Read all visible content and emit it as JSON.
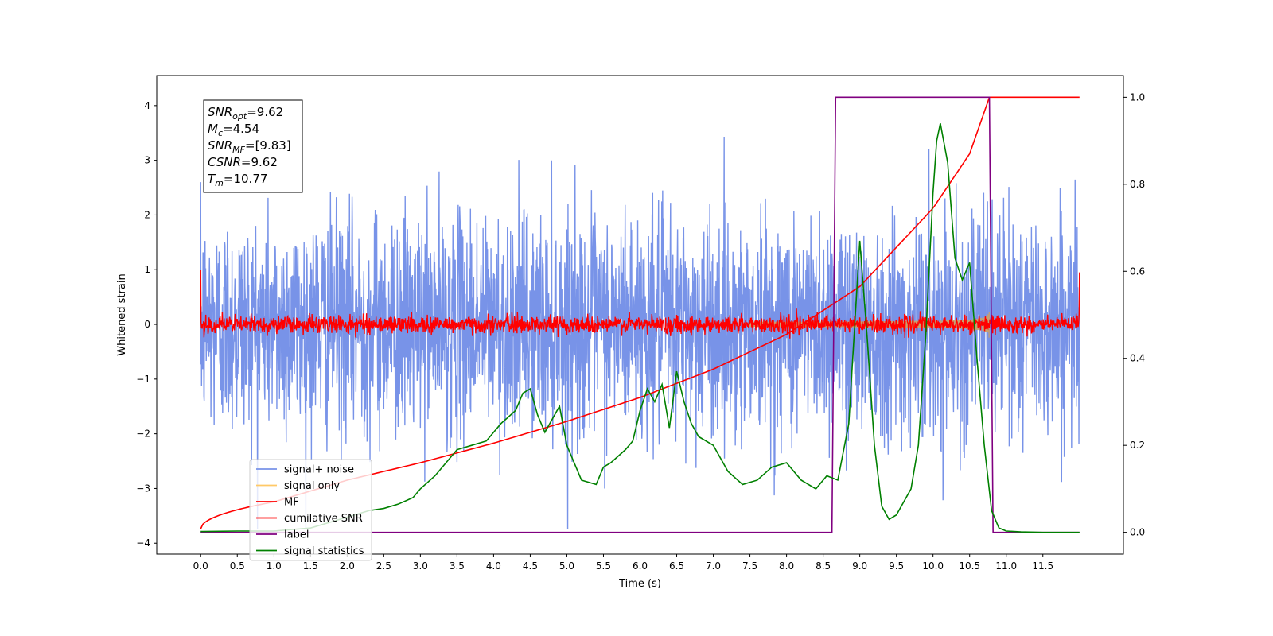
{
  "chart_data": {
    "type": "line",
    "xlabel": "Time (s)",
    "ylabel_left": "Whitened strain",
    "xlim": [
      -0.6,
      12.6
    ],
    "ylim_left": [
      -4.2,
      4.55
    ],
    "ylim_right": [
      -0.05,
      1.05
    ],
    "x_ticks": [
      0.0,
      0.5,
      1.0,
      1.5,
      2.0,
      2.5,
      3.0,
      3.5,
      4.0,
      4.5,
      5.0,
      5.5,
      6.0,
      6.5,
      7.0,
      7.5,
      8.0,
      8.5,
      9.0,
      9.5,
      10.0,
      10.5,
      11.0,
      11.5
    ],
    "x_tick_labels": [
      "0.0",
      "0.5",
      "1.0",
      "1.5",
      "2.0",
      "2.5",
      "3.0",
      "3.5",
      "4.0",
      "4.5",
      "5.0",
      "5.5",
      "6.0",
      "6.5",
      "7.0",
      "7.5",
      "8.0",
      "8.5",
      "9.0",
      "9.5",
      "10.0",
      "10.5",
      "11.0",
      "11.5"
    ],
    "y_left_ticks": [
      4,
      3,
      2,
      1,
      0,
      -1,
      -2,
      -3,
      -4
    ],
    "y_left_tick_labels": [
      "4",
      "3",
      "2",
      "1",
      "0",
      "−1",
      "−2",
      "−3",
      "−4"
    ],
    "y_right_ticks": [
      1.0,
      0.8,
      0.6,
      0.4,
      0.2,
      0.0
    ],
    "y_right_tick_labels": [
      "1.0",
      "0.8",
      "0.6",
      "0.4",
      "0.2",
      "0.0"
    ],
    "series": [
      {
        "name": "signal+ noise",
        "color": "#7893e8",
        "axis": "left",
        "description_type": "dense noise",
        "amplitude_std": 1.0
      },
      {
        "name": "signal only",
        "color": "#ffc966",
        "axis": "left",
        "description_type": "chirp",
        "max_amplitude": 0.75,
        "end_time": 10.77
      },
      {
        "name": "MF",
        "color": "#ff0000",
        "axis": "left",
        "description_type": "dense noise",
        "amplitude_std": 0.08
      },
      {
        "name": "cumilative SNR",
        "color": "#ff0000",
        "axis": "right",
        "x": [
          0.0,
          1.0,
          2.0,
          3.0,
          4.0,
          5.0,
          6.0,
          7.0,
          8.0,
          9.0,
          10.0,
          10.5,
          10.77,
          12.0
        ],
        "values": [
          0.008,
          0.07,
          0.12,
          0.16,
          0.205,
          0.255,
          0.31,
          0.375,
          0.455,
          0.565,
          0.745,
          0.87,
          1.0,
          1.0
        ]
      },
      {
        "name": "label",
        "color": "#800080",
        "axis": "right",
        "x": [
          0.0,
          8.62,
          8.67,
          10.77,
          10.82,
          12.0
        ],
        "values": [
          0.0,
          0.0,
          1.0,
          1.0,
          0.0,
          0.0
        ]
      },
      {
        "name": "signal statistics",
        "color": "#008000",
        "axis": "right",
        "x": [
          0.0,
          0.5,
          1.0,
          1.5,
          2.0,
          2.3,
          2.5,
          2.7,
          2.9,
          3.0,
          3.2,
          3.4,
          3.5,
          3.7,
          3.9,
          4.1,
          4.3,
          4.4,
          4.5,
          4.6,
          4.7,
          4.8,
          4.9,
          5.0,
          5.2,
          5.4,
          5.5,
          5.6,
          5.8,
          5.9,
          6.0,
          6.1,
          6.2,
          6.3,
          6.4,
          6.5,
          6.6,
          6.7,
          6.8,
          7.0,
          7.2,
          7.4,
          7.6,
          7.8,
          8.0,
          8.2,
          8.4,
          8.55,
          8.7,
          8.85,
          9.0,
          9.1,
          9.2,
          9.3,
          9.4,
          9.5,
          9.6,
          9.7,
          9.8,
          9.9,
          10.0,
          10.05,
          10.1,
          10.2,
          10.3,
          10.4,
          10.5,
          10.6,
          10.7,
          10.8,
          10.9,
          11.0,
          11.2,
          11.5,
          12.0
        ],
        "values": [
          0.002,
          0.003,
          0.003,
          0.01,
          0.035,
          0.05,
          0.055,
          0.065,
          0.08,
          0.1,
          0.13,
          0.17,
          0.19,
          0.2,
          0.21,
          0.25,
          0.28,
          0.32,
          0.33,
          0.27,
          0.23,
          0.26,
          0.29,
          0.2,
          0.12,
          0.11,
          0.15,
          0.16,
          0.19,
          0.21,
          0.28,
          0.33,
          0.3,
          0.34,
          0.24,
          0.37,
          0.3,
          0.25,
          0.22,
          0.2,
          0.14,
          0.11,
          0.12,
          0.15,
          0.16,
          0.12,
          0.1,
          0.13,
          0.12,
          0.25,
          0.67,
          0.45,
          0.2,
          0.06,
          0.03,
          0.04,
          0.07,
          0.1,
          0.2,
          0.45,
          0.78,
          0.9,
          0.94,
          0.85,
          0.63,
          0.58,
          0.62,
          0.4,
          0.2,
          0.05,
          0.01,
          0.003,
          0.001,
          0.0,
          0.0
        ]
      }
    ],
    "legend": {
      "location": "lower-left",
      "entries": [
        "signal+ noise",
        "signal only",
        "MF",
        "cumilative SNR",
        "label",
        "signal statistics"
      ]
    },
    "annotation": {
      "location": "top-left",
      "lines": [
        {
          "base": "SNR",
          "sub": "opt",
          "value": "=9.62"
        },
        {
          "base": "M",
          "sub": "c",
          "value": "=4.54"
        },
        {
          "base": "SNR",
          "sub": "MF",
          "value": "=[9.83]"
        },
        {
          "base": "CSNR",
          "sub": "",
          "value": "=9.62"
        },
        {
          "base": "T",
          "sub": "m",
          "value": "=10.77"
        }
      ]
    },
    "grid": false
  }
}
